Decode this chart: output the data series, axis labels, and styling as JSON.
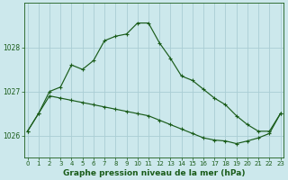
{
  "title": "Graphe pression niveau de la mer (hPa)",
  "background_color": "#cce8ec",
  "plot_bg_color": "#cce8ec",
  "grid_color": "#aacdd4",
  "line_color": "#1a5c1a",
  "marker_color": "#1a5c1a",
  "x_labels": [
    "0",
    "1",
    "2",
    "3",
    "4",
    "5",
    "6",
    "7",
    "8",
    "9",
    "10",
    "11",
    "12",
    "13",
    "14",
    "15",
    "16",
    "17",
    "18",
    "19",
    "20",
    "21",
    "22",
    "23"
  ],
  "yticks": [
    1026,
    1027,
    1028
  ],
  "ylim": [
    1025.5,
    1029.0
  ],
  "series1": [
    1026.1,
    1026.5,
    1027.0,
    1027.1,
    1027.6,
    1027.5,
    1027.7,
    1028.15,
    1028.25,
    1028.3,
    1028.55,
    1028.55,
    1028.1,
    1027.75,
    1027.35,
    1027.25,
    1027.05,
    1026.85,
    1026.7,
    1026.45,
    1026.25,
    1026.1,
    1026.1,
    1026.5
  ],
  "series2": [
    1026.1,
    1026.5,
    1026.9,
    1026.85,
    1026.8,
    1026.75,
    1026.7,
    1026.65,
    1026.6,
    1026.55,
    1026.5,
    1026.45,
    1026.35,
    1026.25,
    1026.15,
    1026.05,
    1025.95,
    1025.9,
    1025.88,
    1025.82,
    1025.88,
    1025.95,
    1026.05,
    1026.5
  ],
  "title_fontsize": 6.5,
  "tick_fontsize": 5.5,
  "xlabel_fontsize": 5.0
}
